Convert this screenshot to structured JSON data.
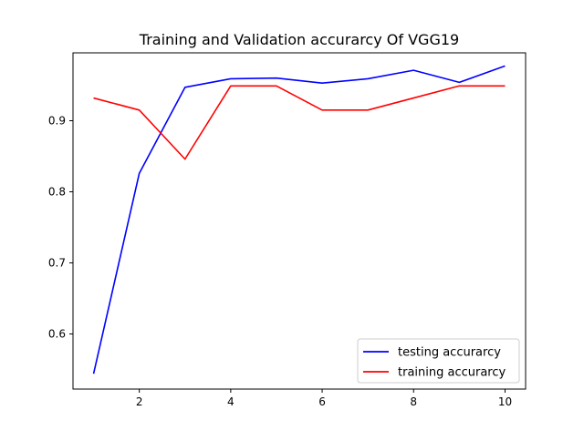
{
  "chart_data": {
    "type": "line",
    "title": "Training and Validation accurarcy Of VGG19",
    "xlabel": "",
    "ylabel": "",
    "x": [
      1,
      2,
      3,
      4,
      5,
      6,
      7,
      8,
      9,
      10
    ],
    "xlim": [
      0.55,
      10.45
    ],
    "ylim": [
      0.5225,
      0.9955
    ],
    "x_ticks": [
      2,
      4,
      6,
      8,
      10
    ],
    "y_ticks": [
      0.6,
      0.7,
      0.8,
      0.9
    ],
    "x_tick_labels": [
      "2",
      "4",
      "6",
      "8",
      "10"
    ],
    "y_tick_labels": [
      "0.6",
      "0.7",
      "0.8",
      "0.9"
    ],
    "grid": false,
    "legend_position": "lower-right",
    "series": [
      {
        "name": "testing accurarcy",
        "color": "#0000ff",
        "values": [
          0.544,
          0.826,
          0.947,
          0.959,
          0.96,
          0.953,
          0.959,
          0.971,
          0.954,
          0.977
        ]
      },
      {
        "name": "training accurarcy",
        "color": "#ff0000",
        "values": [
          0.932,
          0.915,
          0.846,
          0.949,
          0.949,
          0.915,
          0.915,
          0.932,
          0.949,
          0.949
        ]
      }
    ]
  }
}
